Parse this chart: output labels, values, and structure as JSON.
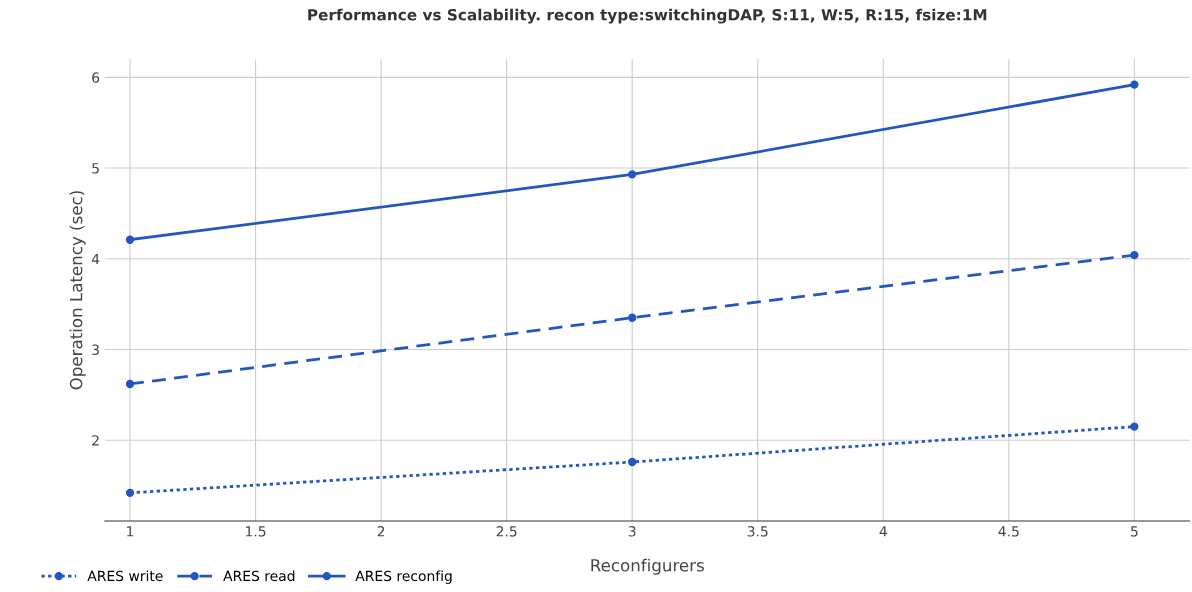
{
  "chart_data": {
    "type": "line",
    "title": "Performance vs Scalability. recon type:switchingDAP, S:11, W:5, R:15, fsize:1M",
    "xlabel": "Reconfigurers",
    "ylabel": "Operation Latency (sec)",
    "x": [
      1,
      3,
      5
    ],
    "series": [
      {
        "name": "ARES write",
        "color": "#2456c2",
        "values": [
          1.42,
          1.76,
          2.15
        ],
        "line_style": "dotted"
      },
      {
        "name": "ARES read",
        "color": "#2456c2",
        "values": [
          2.62,
          3.35,
          4.04
        ],
        "line_style": "dashed"
      },
      {
        "name": "ARES reconfig",
        "color": "#2456c2",
        "values": [
          4.21,
          4.93,
          5.92
        ],
        "line_style": "solid"
      }
    ],
    "xlim": [
      0.9,
      5.22
    ],
    "xticks": [
      1,
      1.5,
      2,
      2.5,
      3,
      3.5,
      4,
      4.5,
      5
    ],
    "ylim": [
      1.11,
      6.2
    ],
    "yticks": [
      2,
      3,
      4,
      5,
      6
    ],
    "grid": true,
    "legend": "bottom left",
    "marker": "circle"
  }
}
